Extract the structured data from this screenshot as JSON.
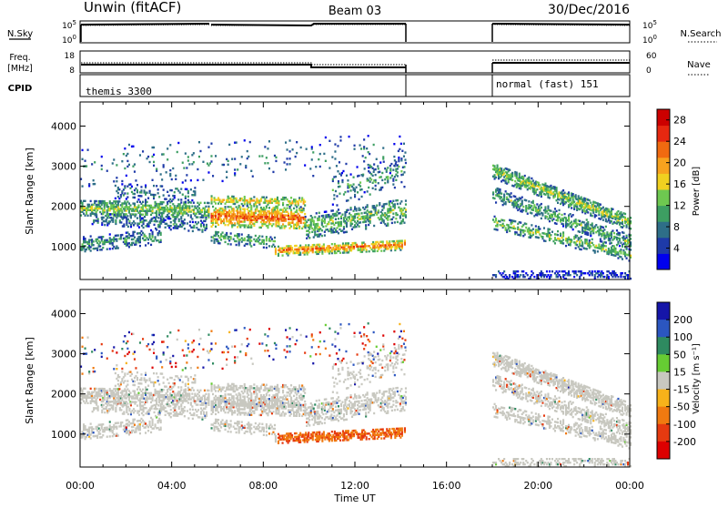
{
  "header": {
    "title": "Unwin (fitACF)",
    "beam": "Beam 03",
    "date": "30/Dec/2016"
  },
  "top_panels": {
    "nsky_label": "N.Sky",
    "nsky_top_tick": "10^5",
    "nsky_bottom_tick": "10^0",
    "nsearch_label": "N.Search",
    "nsearch_top_tick": "10^5",
    "nsearch_bottom_tick": "10^0",
    "freq_label_line1": "Freq.",
    "freq_label_line2": "[MHz]",
    "freq_top_tick": "18",
    "freq_bottom_tick": "8",
    "nave_label": "Nave",
    "nave_top_tick": "60",
    "nave_bottom_tick": "0",
    "cpid_label": "CPID",
    "cpid_segments": [
      {
        "label": "themis 3300",
        "start_hour": 0,
        "end_hour": 14.2
      },
      {
        "label": "normal (fast) 151",
        "start_hour": 17.9,
        "end_hour": 24
      }
    ]
  },
  "chart_data": [
    {
      "type": "heatmap",
      "name": "power",
      "ylabel": "Slant Range [km]",
      "xlabel": "",
      "ylim": [
        180,
        4600
      ],
      "yticks": [
        1000,
        2000,
        3000,
        4000
      ],
      "colorbar_label": "Power [dB]",
      "colorbar_ticks": [
        "4",
        "8",
        "12",
        "16",
        "20",
        "24",
        "28"
      ],
      "colorbar_range": [
        0,
        30
      ],
      "colorbar_colors": [
        "#0000ee",
        "#1e3aa8",
        "#2e6e88",
        "#3d9e62",
        "#6ec850",
        "#f0d020",
        "#f7a21e",
        "#f06a10",
        "#e62810",
        "#cc0000"
      ],
      "data_gap_hours": [
        14.2,
        17.9
      ]
    },
    {
      "type": "heatmap",
      "name": "velocity",
      "ylabel": "Slant Range [km]",
      "xlabel": "Time UT",
      "ylim": [
        180,
        4600
      ],
      "yticks": [
        1000,
        2000,
        3000,
        4000
      ],
      "xticks": [
        "00:00",
        "04:00",
        "08:00",
        "12:00",
        "16:00",
        "20:00",
        "00:00"
      ],
      "xtick_hours": [
        0,
        4,
        8,
        12,
        16,
        20,
        24
      ],
      "colorbar_label": "Velocity [m s⁻¹]",
      "colorbar_ticks": [
        "200",
        "100",
        "50",
        "15",
        "-15",
        "-50",
        "-100",
        "-200"
      ],
      "colorbar_colors": [
        "#1515a8",
        "#2b56c0",
        "#2e8a60",
        "#66cc33",
        "#c8c8c0",
        "#f7b21a",
        "#f07a10",
        "#e63a10",
        "#dd0000"
      ],
      "data_gap_hours": [
        14.2,
        17.9
      ]
    }
  ]
}
